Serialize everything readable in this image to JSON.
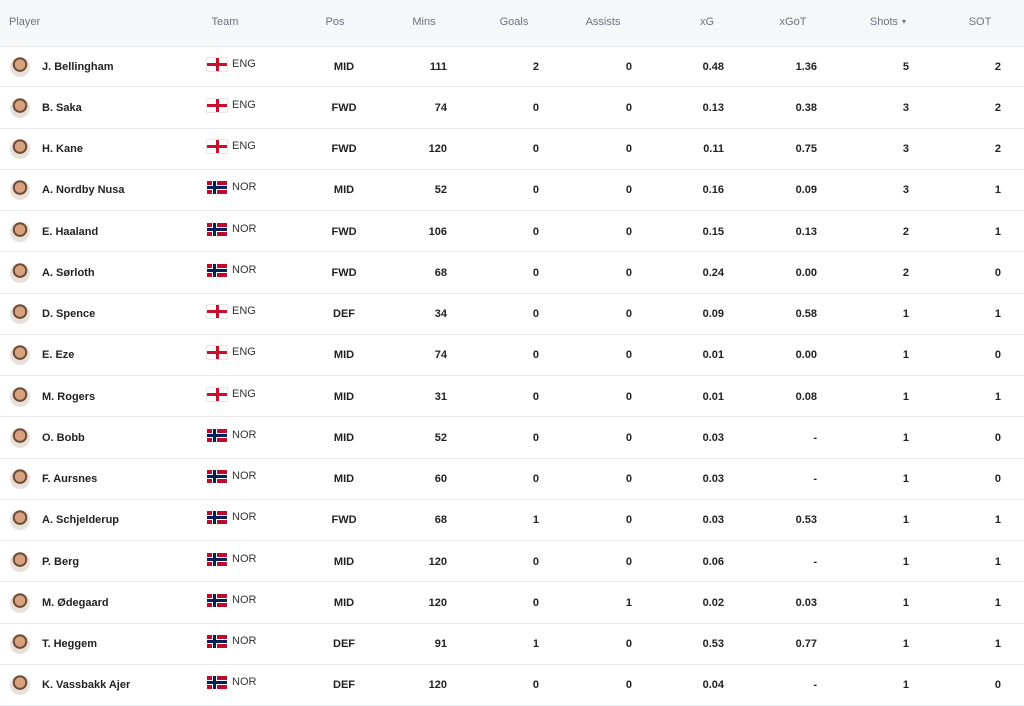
{
  "table": {
    "headers": [
      "Player",
      "Team",
      "Pos",
      "Mins",
      "Goals",
      "Assists",
      "xG",
      "xGoT",
      "Shots",
      "SOT"
    ],
    "rows": [
      [
        "J. Bellingham",
        "ENG",
        "MID",
        "111",
        "2",
        "0",
        "0.48",
        "1.36",
        "5",
        "2"
      ],
      [
        "B. Saka",
        "ENG",
        "FWD",
        "74",
        "0",
        "0",
        "0.13",
        "0.38",
        "3",
        "2"
      ],
      [
        "H. Kane",
        "ENG",
        "FWD",
        "120",
        "0",
        "0",
        "0.11",
        "0.75",
        "3",
        "2"
      ],
      [
        "A. Nordby Nusa",
        "NOR",
        "MID",
        "52",
        "0",
        "0",
        "0.16",
        "0.09",
        "3",
        "1"
      ],
      [
        "E. Haaland",
        "NOR",
        "FWD",
        "106",
        "0",
        "0",
        "0.15",
        "0.13",
        "2",
        "1"
      ],
      [
        "A. Sørloth",
        "NOR",
        "FWD",
        "68",
        "0",
        "0",
        "0.24",
        "0.00",
        "2",
        "0"
      ],
      [
        "D. Spence",
        "ENG",
        "DEF",
        "34",
        "0",
        "0",
        "0.09",
        "0.58",
        "1",
        "1"
      ],
      [
        "E. Eze",
        "ENG",
        "MID",
        "74",
        "0",
        "0",
        "0.01",
        "0.00",
        "1",
        "0"
      ],
      [
        "M. Rogers",
        "ENG",
        "MID",
        "31",
        "0",
        "0",
        "0.01",
        "0.08",
        "1",
        "1"
      ],
      [
        "O. Bobb",
        "NOR",
        "MID",
        "52",
        "0",
        "0",
        "0.03",
        "-",
        "1",
        "0"
      ],
      [
        "F. Aursnes",
        "NOR",
        "MID",
        "60",
        "0",
        "0",
        "0.03",
        "-",
        "1",
        "0"
      ],
      [
        "A. Schjelderup",
        "NOR",
        "FWD",
        "68",
        "1",
        "0",
        "0.03",
        "0.53",
        "1",
        "1"
      ],
      [
        "P. Berg",
        "NOR",
        "MID",
        "120",
        "0",
        "0",
        "0.06",
        "-",
        "1",
        "1"
      ],
      [
        "M. Ødegaard",
        "NOR",
        "MID",
        "120",
        "0",
        "1",
        "0.02",
        "0.03",
        "1",
        "1"
      ],
      [
        "T. Heggem",
        "NOR",
        "DEF",
        "91",
        "1",
        "0",
        "0.53",
        "0.77",
        "1",
        "1"
      ],
      [
        "K. Vassbakk Ajer",
        "NOR",
        "DEF",
        "120",
        "0",
        "0",
        "0.04",
        "-",
        "1",
        "0"
      ]
    ]
  }
}
